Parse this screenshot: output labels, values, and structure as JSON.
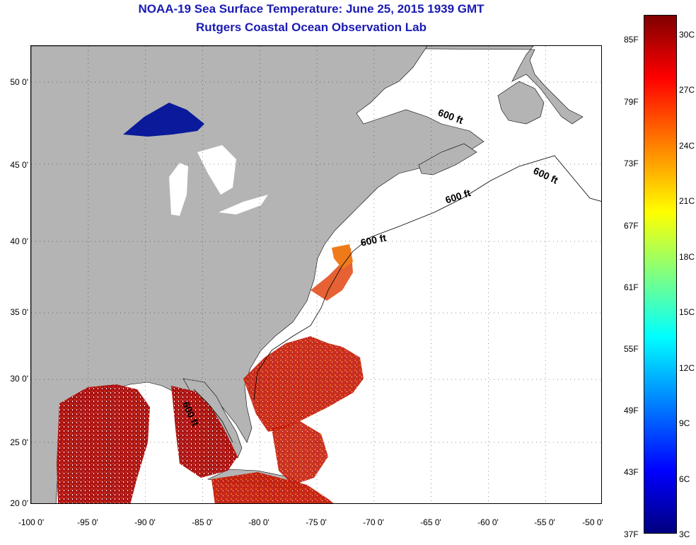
{
  "header": {
    "title": "NOAA-19 Sea Surface Temperature:  June 25, 2015 1939 GMT",
    "subtitle": "Rutgers Coastal Ocean Observation Lab"
  },
  "map": {
    "lon_range": [
      -100,
      -50
    ],
    "lat_range": [
      20,
      52
    ],
    "lat_ticks": [
      {
        "value": 50,
        "label": "50 0'"
      },
      {
        "value": 45,
        "label": "45 0'"
      },
      {
        "value": 40,
        "label": "40 0'"
      },
      {
        "value": 35,
        "label": "35 0'"
      },
      {
        "value": 30,
        "label": "30 0'"
      },
      {
        "value": 25,
        "label": "25 0'"
      },
      {
        "value": 20,
        "label": "20 0'"
      }
    ],
    "lon_ticks": [
      {
        "value": -100,
        "label": "-100 0'"
      },
      {
        "value": -95,
        "label": "-95 0'"
      },
      {
        "value": -90,
        "label": "-90 0'"
      },
      {
        "value": -85,
        "label": "-85 0'"
      },
      {
        "value": -80,
        "label": "-80 0'"
      },
      {
        "value": -75,
        "label": "-75 0'"
      },
      {
        "value": -70,
        "label": "-70 0'"
      },
      {
        "value": -65,
        "label": "-65 0'"
      },
      {
        "value": -60,
        "label": "-60 0'"
      },
      {
        "value": -55,
        "label": "-55 0'"
      },
      {
        "value": -50,
        "label": "-50 0'"
      }
    ],
    "contour_labels": [
      "600 ft",
      "600 ft",
      "600 ft",
      "600 ft",
      "600 ft"
    ],
    "grid": "dotted",
    "colors": {
      "land": "#b4b4b4",
      "no_data": "#ffffff"
    }
  },
  "colorbar": {
    "fahrenheit_labels": [
      "85F",
      "79F",
      "73F",
      "67F",
      "61F",
      "55F",
      "49F",
      "43F",
      "37F"
    ],
    "celsius_labels": [
      "30C",
      "27C",
      "24C",
      "21C",
      "18C",
      "15C",
      "12C",
      "9C",
      "6C",
      "3C"
    ],
    "range_celsius": [
      3,
      31
    ],
    "colormap": "jet"
  }
}
